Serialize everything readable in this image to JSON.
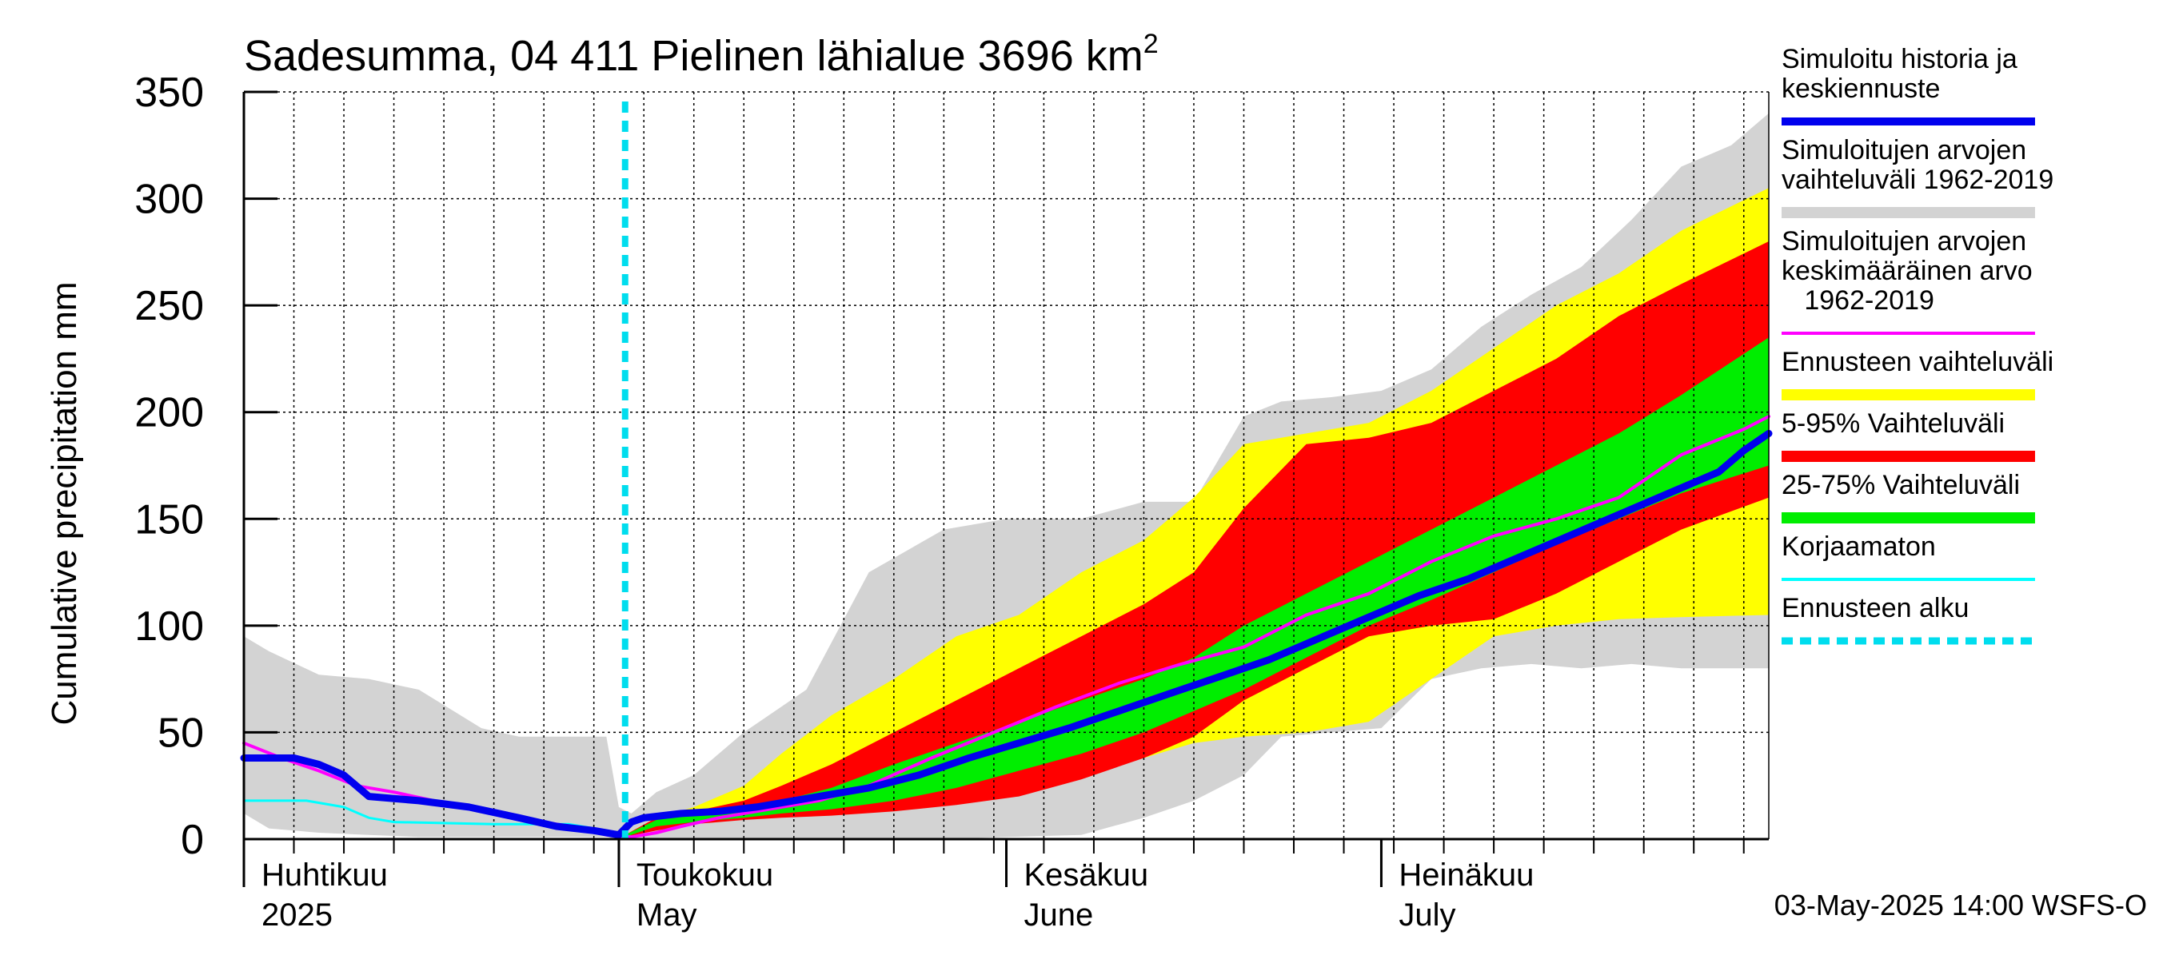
{
  "chart_data": {
    "type": "area",
    "title_prefix": "Sadesumma, 04 411 Pielinen lähialue 3696 km",
    "title_superscript": "2",
    "ylabel": "Cumulative precipitation   mm",
    "ylim": [
      0,
      350
    ],
    "yticks": [
      "0",
      "50",
      "100",
      "150",
      "200",
      "250",
      "300",
      "350"
    ],
    "ytick_values": [
      0,
      50,
      100,
      150,
      200,
      250,
      300,
      350
    ],
    "x_unit": "day",
    "x_start_date": "2025-04-01",
    "x_range_days": [
      0,
      122
    ],
    "month_labels": [
      {
        "fi": "Huhtikuu",
        "en": "2025",
        "day": 0
      },
      {
        "fi": "Toukokuu",
        "en": "May",
        "day": 30
      },
      {
        "fi": "Kesäkuu",
        "en": "June",
        "day": 61
      },
      {
        "fi": "Heinäkuu",
        "en": "July",
        "day": 91
      }
    ],
    "forecast_start_day": 30.5,
    "footer": "03-May-2025 14:00 WSFS-O",
    "colors": {
      "grey": "#d3d3d3",
      "yellow": "#ffff00",
      "red": "#ff0000",
      "green": "#00ee00",
      "blue": "#0000ee",
      "magenta": "#ff00ff",
      "cyan": "#00ffff",
      "dashed": "#00ddee"
    },
    "legend": [
      {
        "label": "Simuloitu historia ja keskiennuste",
        "lines": [
          "Simuloitu historia ja",
          "keskiennuste"
        ],
        "color": "#0000ee",
        "style": "thick"
      },
      {
        "label": "Simuloitujen arvojen vaihteluväli 1962-2019",
        "lines": [
          "Simuloitujen arvojen",
          "vaihteluväli 1962-2019"
        ],
        "color": "#d3d3d3",
        "style": "band"
      },
      {
        "label": "Simuloitujen arvojen keskimääräinen arvo 1962-2019",
        "lines": [
          "Simuloitujen arvojen",
          "keskimääräinen arvo",
          "   1962-2019"
        ],
        "color": "#ff00ff",
        "style": "thin"
      },
      {
        "label": "Ennusteen vaihteluväli",
        "lines": [
          "Ennusteen vaihteluväli"
        ],
        "color": "#ffff00",
        "style": "band"
      },
      {
        "label": "5-95% Vaihteluväli",
        "lines": [
          "5-95% Vaihteluväli"
        ],
        "color": "#ff0000",
        "style": "band"
      },
      {
        "label": "25-75% Vaihteluväli",
        "lines": [
          "25-75% Vaihteluväli"
        ],
        "color": "#00ee00",
        "style": "band"
      },
      {
        "label": "Korjaamaton",
        "lines": [
          "Korjaamaton"
        ],
        "color": "#00ffff",
        "style": "thin"
      },
      {
        "label": "Ennusteen alku",
        "lines": [
          "Ennusteen alku"
        ],
        "color": "#00ddee",
        "style": "dashed"
      }
    ],
    "series": [
      {
        "name": "Simuloitujen arvojen vaihteluväli 1962-2019",
        "kind": "band",
        "color": "#d3d3d3",
        "days": [
          0,
          2,
          6,
          10,
          14,
          19,
          22,
          26,
          29,
          30,
          31,
          33,
          36,
          40,
          45,
          50,
          56,
          61,
          67,
          72,
          76,
          80,
          83,
          87,
          91,
          95,
          99,
          103,
          107,
          111,
          115,
          119,
          122
        ],
        "upper": [
          95,
          88,
          77,
          75,
          70,
          52,
          48,
          48,
          48,
          15,
          12,
          22,
          30,
          50,
          70,
          125,
          145,
          150,
          150,
          158,
          158,
          198,
          205,
          207,
          210,
          220,
          240,
          255,
          268,
          290,
          315,
          325,
          340
        ],
        "lower": [
          12,
          5,
          3,
          2,
          1,
          1,
          1,
          1,
          1,
          0,
          0,
          0,
          0,
          0,
          0,
          0,
          0,
          1,
          2,
          10,
          18,
          30,
          48,
          50,
          52,
          75,
          80,
          82,
          80,
          82,
          80,
          80,
          80
        ]
      },
      {
        "name": "Ennusteen vaihteluväli",
        "kind": "band",
        "color": "#ffff00",
        "days": [
          30.5,
          33,
          36,
          40,
          43,
          47,
          52,
          57,
          62,
          67,
          72,
          76,
          80,
          85,
          90,
          95,
          100,
          105,
          110,
          115,
          122
        ],
        "upper": [
          2,
          10,
          15,
          25,
          40,
          58,
          75,
          95,
          105,
          125,
          140,
          160,
          185,
          190,
          195,
          210,
          230,
          250,
          265,
          285,
          305
        ],
        "lower": [
          1,
          5,
          8,
          10,
          11,
          13,
          16,
          20,
          25,
          30,
          38,
          45,
          48,
          50,
          55,
          75,
          95,
          100,
          103,
          104,
          105
        ]
      },
      {
        "name": "5-95% Vaihteluväli",
        "kind": "band",
        "color": "#ff0000",
        "days": [
          30.5,
          33,
          36,
          40,
          43,
          47,
          52,
          57,
          62,
          67,
          72,
          76,
          80,
          85,
          90,
          95,
          100,
          105,
          110,
          115,
          122
        ],
        "upper": [
          2,
          10,
          13,
          18,
          25,
          35,
          50,
          65,
          80,
          95,
          110,
          125,
          155,
          185,
          188,
          195,
          210,
          225,
          245,
          260,
          280
        ],
        "lower": [
          1,
          4,
          7,
          9,
          10,
          11,
          13,
          16,
          20,
          28,
          38,
          48,
          65,
          80,
          95,
          100,
          103,
          115,
          130,
          145,
          160
        ]
      },
      {
        "name": "25-75% Vaihteluväli",
        "kind": "band",
        "color": "#00ee00",
        "days": [
          30.5,
          33,
          36,
          40,
          43,
          47,
          52,
          57,
          62,
          67,
          72,
          76,
          80,
          85,
          90,
          95,
          100,
          105,
          110,
          115,
          122
        ],
        "upper": [
          2,
          9,
          12,
          14,
          18,
          24,
          35,
          45,
          55,
          65,
          75,
          85,
          100,
          115,
          130,
          145,
          160,
          175,
          190,
          208,
          235
        ],
        "lower": [
          1,
          6,
          8,
          10,
          12,
          14,
          18,
          24,
          32,
          40,
          50,
          60,
          70,
          85,
          100,
          112,
          125,
          138,
          150,
          162,
          175
        ]
      },
      {
        "name": "Korjaamaton",
        "kind": "line",
        "color": "#00ffff",
        "width": 3,
        "days": [
          0,
          5,
          8,
          10,
          12,
          20,
          26,
          28,
          29,
          30
        ],
        "values": [
          18,
          18,
          15,
          10,
          8,
          7,
          7,
          5,
          3,
          1
        ]
      },
      {
        "name": "Simuloitujen arvojen keskimääräinen arvo 1962-2019",
        "kind": "line",
        "color": "#ff00ff",
        "width": 4,
        "days": [
          0,
          3,
          6,
          9,
          12,
          16,
          20,
          24,
          27,
          29,
          31,
          33,
          35,
          38,
          42,
          46,
          50,
          55,
          60,
          65,
          70,
          75,
          80,
          85,
          90,
          95,
          100,
          105,
          110,
          115,
          120,
          122
        ],
        "values": [
          45,
          38,
          32,
          25,
          22,
          17,
          12,
          8,
          5,
          2,
          1,
          3,
          6,
          10,
          14,
          18,
          25,
          38,
          50,
          62,
          73,
          82,
          90,
          105,
          115,
          130,
          142,
          150,
          160,
          180,
          192,
          198
        ]
      },
      {
        "name": "Simuloitu historia ja keskiennuste",
        "kind": "line",
        "color": "#0000ee",
        "width": 9,
        "days": [
          0,
          4,
          6,
          8,
          10,
          14,
          18,
          22,
          25,
          28,
          30,
          31,
          32,
          35,
          38,
          41,
          44,
          47,
          50,
          54,
          58,
          62,
          66,
          70,
          74,
          78,
          82,
          86,
          90,
          94,
          98,
          102,
          106,
          110,
          114,
          118,
          120,
          122
        ],
        "values": [
          38,
          38,
          35,
          30,
          20,
          18,
          15,
          10,
          6,
          4,
          2,
          8,
          10,
          12,
          13,
          15,
          18,
          21,
          24,
          30,
          38,
          45,
          52,
          60,
          68,
          76,
          84,
          94,
          104,
          114,
          122,
          132,
          142,
          152,
          162,
          172,
          182,
          190
        ]
      }
    ]
  }
}
